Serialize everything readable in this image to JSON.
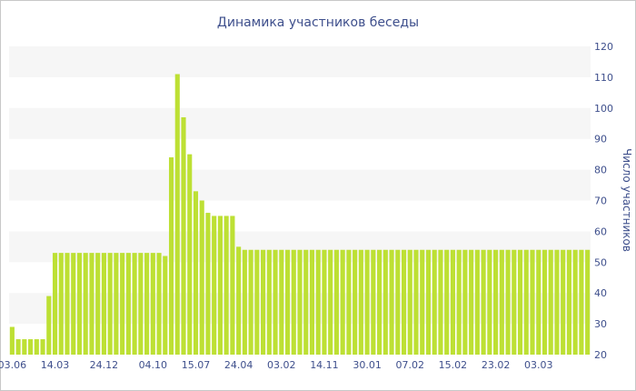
{
  "chart_data": {
    "type": "bar",
    "title": "Динамика участников беседы",
    "ylabel": "Число участников",
    "xlabel": "",
    "ylim": [
      20,
      120
    ],
    "yticks": [
      20,
      30,
      40,
      50,
      60,
      70,
      80,
      90,
      100,
      110,
      120
    ],
    "y_axis_side": "right",
    "grid": "alternating horizontal bands",
    "bar_color": "#bde034",
    "band_color": "#f6f6f6",
    "text_color": "#3e4f8c",
    "x_tick_labels": [
      "03.06",
      "14.03",
      "24.12",
      "04.10",
      "15.07",
      "24.04",
      "03.02",
      "14.11",
      "30.01",
      "07.02",
      "15.02",
      "23.02",
      "03.03"
    ],
    "x_tick_positions": [
      0,
      7,
      15,
      23,
      30,
      37,
      44,
      51,
      58,
      65,
      72,
      79,
      86
    ],
    "values": [
      29,
      25,
      25,
      25,
      25,
      25,
      39,
      53,
      53,
      53,
      53,
      53,
      53,
      53,
      53,
      53,
      53,
      53,
      53,
      53,
      53,
      53,
      53,
      53,
      53,
      52,
      84,
      111,
      97,
      85,
      73,
      70,
      66,
      65,
      65,
      65,
      65,
      55,
      54,
      54,
      54,
      54,
      54,
      54,
      54,
      54,
      54,
      54,
      54,
      54,
      54,
      54,
      54,
      54,
      54,
      54,
      54,
      54,
      54,
      54,
      54,
      54,
      54,
      54,
      54,
      54,
      54,
      54,
      54,
      54,
      54,
      54,
      54,
      54,
      54,
      54,
      54,
      54,
      54,
      54,
      54,
      54,
      54,
      54,
      54,
      54,
      54,
      54,
      54,
      54,
      54,
      54,
      54,
      54,
      54
    ]
  }
}
